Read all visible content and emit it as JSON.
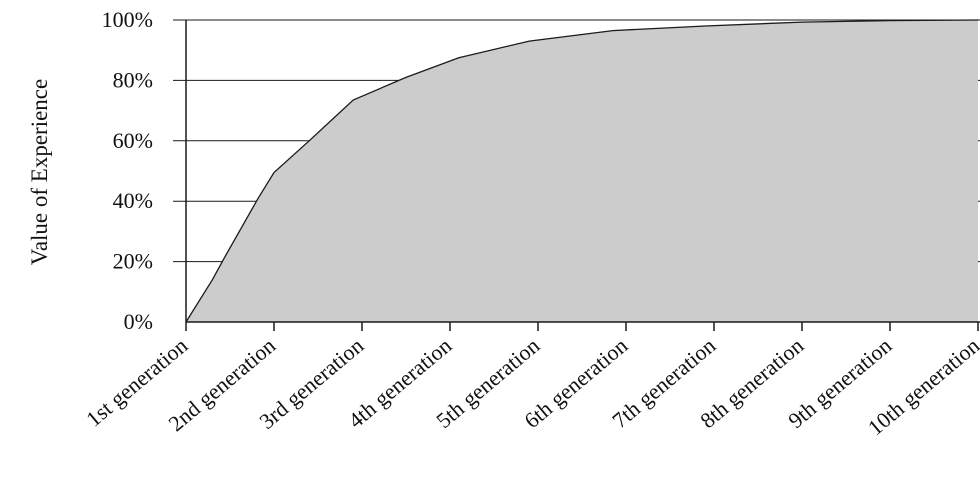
{
  "chart_data": {
    "type": "area",
    "title": "",
    "xlabel": "",
    "ylabel": "Value of Experience",
    "categories": [
      "1st generation",
      "2nd generation",
      "3rd generation",
      "4th generation",
      "5th generation",
      "6th generation",
      "7th generation",
      "8th generation",
      "9th generation",
      "10th generation"
    ],
    "y_ticks": [
      "0%",
      "20%",
      "40%",
      "60%",
      "80%",
      "100%"
    ],
    "ylim": [
      0,
      100
    ],
    "grid": "horizontal",
    "legend": "none",
    "series": [
      {
        "x": [
          1,
          1.3,
          1.45,
          1.82,
          2.0,
          2.4,
          2.9,
          3.5,
          4.1,
          4.9,
          5.85,
          6.9,
          8.0,
          9.0,
          10.0
        ],
        "values": [
          0,
          14,
          22,
          41,
          49.5,
          60,
          73.5,
          81,
          87.5,
          93,
          96.5,
          98,
          99.3,
          99.8,
          100
        ],
        "fill_color": "#cccccc",
        "line_color": "#1a1a1a"
      }
    ]
  }
}
